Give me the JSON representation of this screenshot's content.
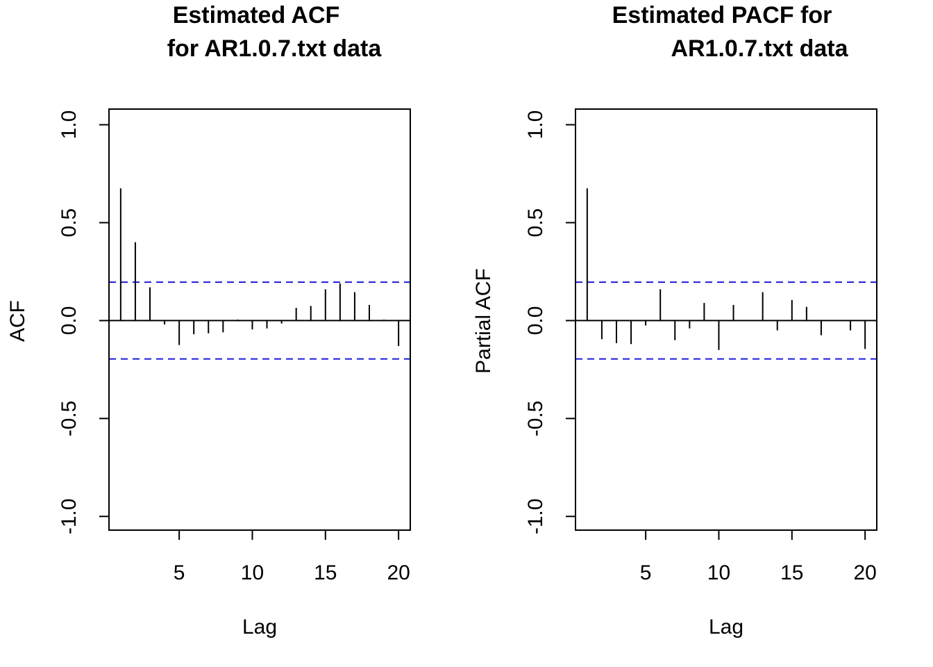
{
  "chart_data": [
    {
      "type": "bar",
      "subtype": "acf-spike",
      "title_lines": [
        "Estimated ACF",
        "for AR1.0.7.txt data"
      ],
      "xlabel": "Lag",
      "ylabel": "ACF",
      "x_ticks": [
        5,
        10,
        15,
        20
      ],
      "y_ticks": [
        -1.0,
        -0.5,
        0.0,
        0.5,
        1.0
      ],
      "y_tick_labels": [
        "-1.0",
        "-0.5",
        "0.0",
        "0.5",
        "1.0"
      ],
      "xlim": [
        0.2,
        20.8
      ],
      "ylim": [
        -1.07,
        1.08
      ],
      "confidence_band": 0.196,
      "confidence_color": "#1a1adb",
      "lags": [
        1,
        2,
        3,
        4,
        5,
        6,
        7,
        8,
        9,
        10,
        11,
        12,
        13,
        14,
        15,
        16,
        17,
        18,
        19,
        20
      ],
      "values": [
        0.675,
        0.4,
        0.17,
        -0.02,
        -0.125,
        -0.07,
        -0.065,
        -0.06,
        0.005,
        -0.045,
        -0.04,
        -0.015,
        0.065,
        0.075,
        0.16,
        0.19,
        0.145,
        0.08,
        0.005,
        -0.13
      ]
    },
    {
      "type": "bar",
      "subtype": "pacf-spike",
      "title_lines": [
        "Estimated PACF for",
        "AR1.0.7.txt data"
      ],
      "xlabel": "Lag",
      "ylabel": "Partial ACF",
      "x_ticks": [
        5,
        10,
        15,
        20
      ],
      "y_ticks": [
        -1.0,
        -0.5,
        0.0,
        0.5,
        1.0
      ],
      "y_tick_labels": [
        "-1.0",
        "-0.5",
        "0.0",
        "0.5",
        "1.0"
      ],
      "xlim": [
        0.2,
        20.8
      ],
      "ylim": [
        -1.07,
        1.08
      ],
      "confidence_band": 0.196,
      "confidence_color": "#1a1adb",
      "lags": [
        1,
        2,
        3,
        4,
        5,
        6,
        7,
        8,
        9,
        10,
        11,
        12,
        13,
        14,
        15,
        16,
        17,
        18,
        19,
        20
      ],
      "values": [
        0.675,
        -0.095,
        -0.115,
        -0.12,
        -0.025,
        0.16,
        -0.1,
        -0.04,
        0.09,
        -0.15,
        0.08,
        0.0,
        0.145,
        -0.05,
        0.105,
        0.07,
        -0.075,
        0.0,
        -0.05,
        -0.145
      ]
    }
  ]
}
